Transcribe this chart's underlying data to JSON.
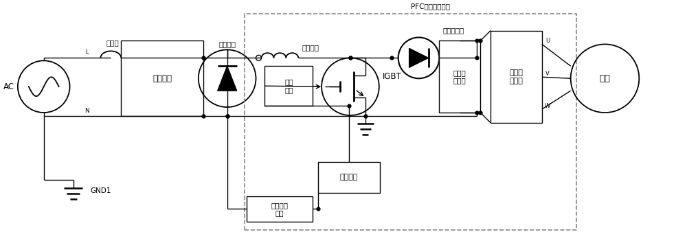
{
  "bg_color": "#ffffff",
  "line_color": "#000000",
  "fig_width": 10.0,
  "fig_height": 3.54,
  "dpi": 100,
  "labels": {
    "ac": "AC",
    "fuse": "保险丝",
    "filter": "滤波电路",
    "rectifier_circuit": "整流电路",
    "inductor": "电感单元",
    "driver": "驱动\n模块",
    "igbt": "IGBT",
    "rectifier_diode": "整流二极管",
    "capacitor": "电解电\n容模块",
    "main_ctrl": "主控模块",
    "voltage_protect": "电压保护\n模块",
    "load_driver": "负载驱\n动模块",
    "motor": "电机",
    "gnd": "GND1",
    "L": "L",
    "N": "N",
    "U": "U",
    "V": "V",
    "W": "W",
    "pfc_label": "PFC过流保护电路"
  }
}
